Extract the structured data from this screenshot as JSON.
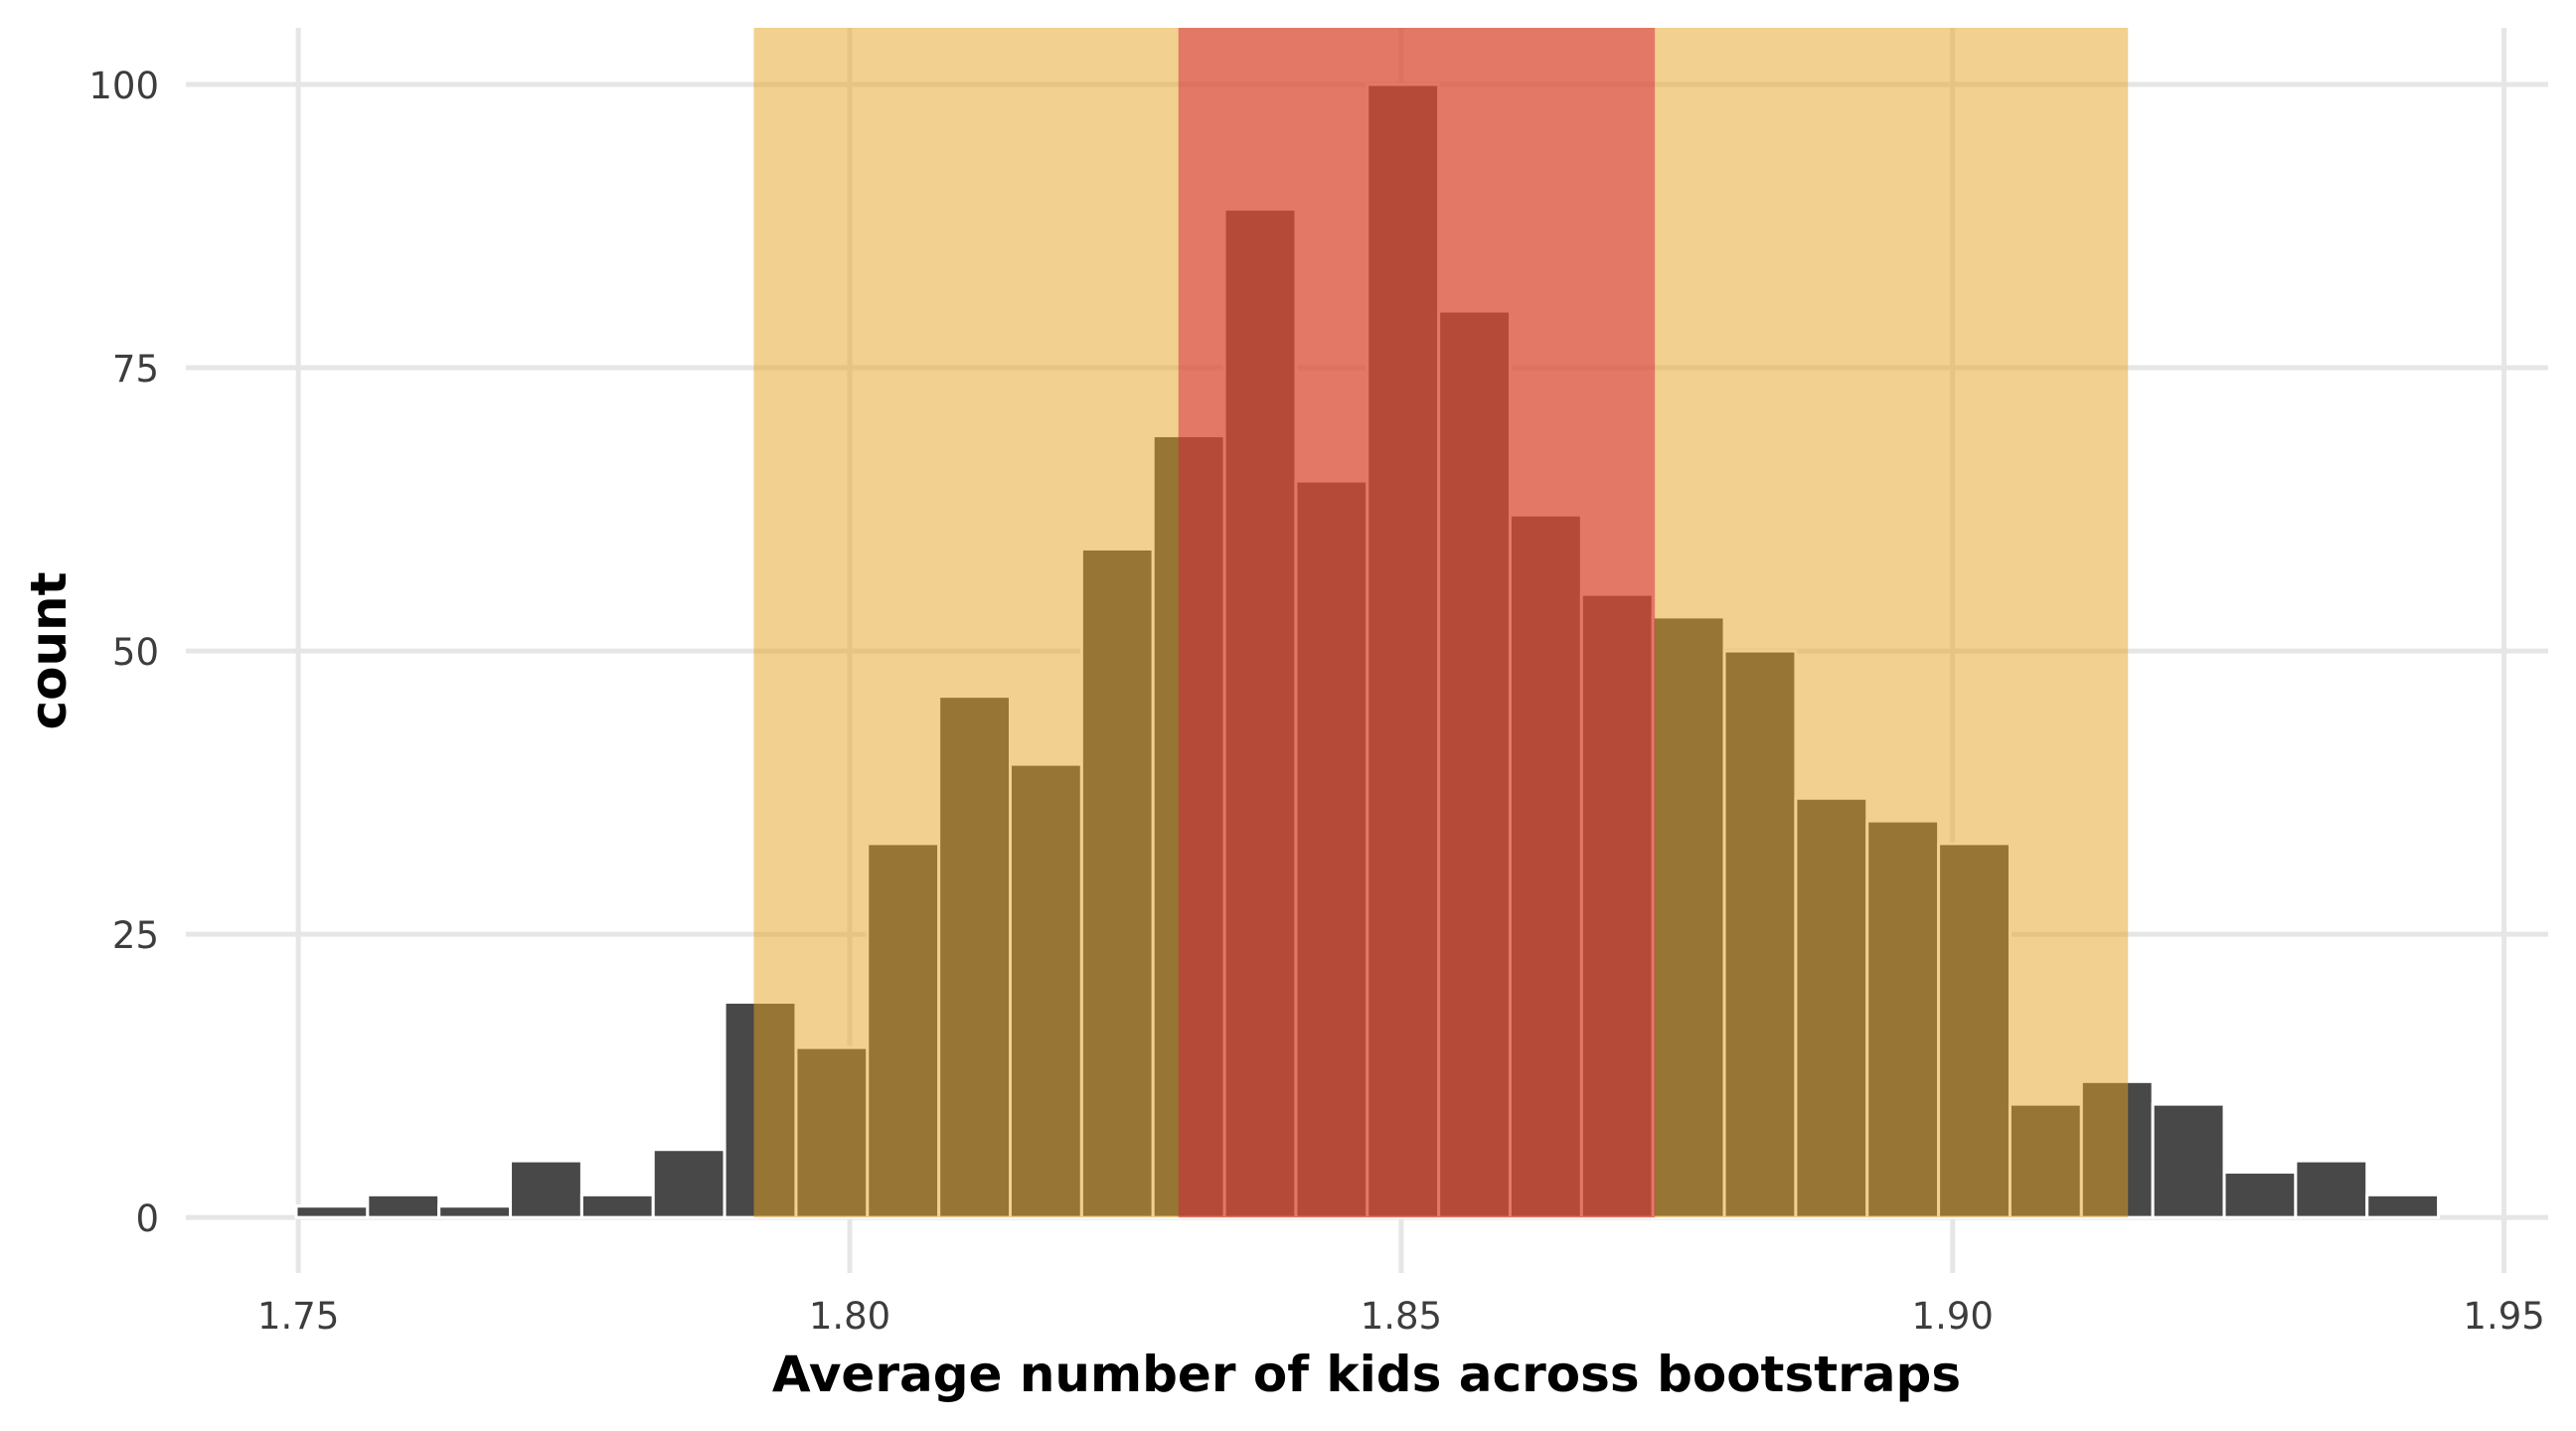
{
  "chart_data": {
    "type": "bar",
    "subtype": "histogram",
    "title": "",
    "xlabel": "Average number of kids across bootstraps",
    "ylabel": "count",
    "xlim": [
      1.7398,
      1.954
    ],
    "ylim": [
      -4.9,
      105
    ],
    "grid": true,
    "x_ticks": [
      1.75,
      1.8,
      1.85,
      1.9,
      1.95
    ],
    "x_tick_labels": [
      "1.75",
      "1.80",
      "1.85",
      "1.90",
      "1.95"
    ],
    "y_ticks": [
      0,
      25,
      50,
      75,
      100
    ],
    "y_tick_labels": [
      "0",
      "25",
      "50",
      "75",
      "100"
    ],
    "bins": {
      "start": 1.7498,
      "width": 0.006475,
      "counts": [
        1,
        2,
        1,
        5,
        2,
        6,
        19,
        15,
        33,
        46,
        40,
        59,
        69,
        89,
        65,
        100,
        80,
        62,
        55,
        53,
        50,
        37,
        35,
        33,
        10,
        12,
        10,
        4,
        5,
        2
      ]
    },
    "bar_fill": "#484848",
    "bar_outline": "#ffffff",
    "shaded_intervals": [
      {
        "name": "outer-interval",
        "xmin": 1.7913,
        "xmax": 1.9159,
        "color": "#e5a11f",
        "opacity": 0.5
      },
      {
        "name": "inner-interval",
        "xmin": 1.8298,
        "xmax": 1.873,
        "color": "#d4203d",
        "opacity": 0.5
      }
    ]
  }
}
